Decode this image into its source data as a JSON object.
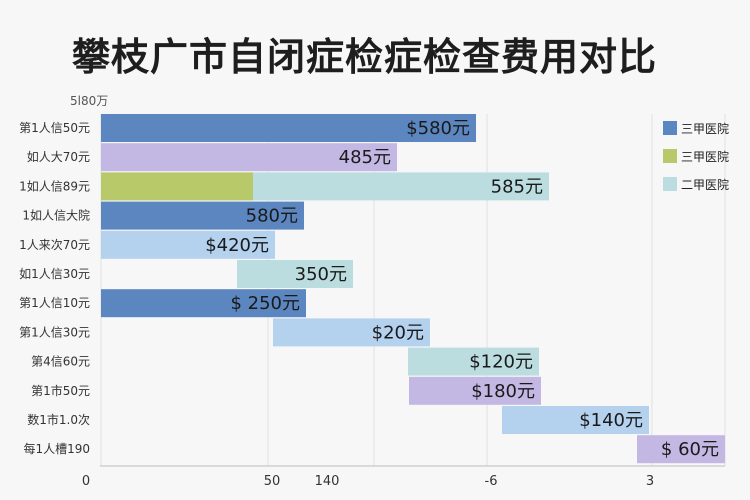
{
  "chart_data": {
    "type": "bar",
    "orientation": "horizontal",
    "title": "攀枝广市自闭症检症检查费用对比",
    "unit_label": "5l80万",
    "legend_position": "right",
    "legend": [
      {
        "name": "三甲医院",
        "color": "#5b86c0"
      },
      {
        "name": "三甲医院",
        "color": "#b8c96a"
      },
      {
        "name": "二甲医院",
        "color": "#bcdde0"
      }
    ],
    "x_ticks": [
      "0",
      "50",
      "140",
      "-6",
      "3"
    ],
    "rows": [
      {
        "category": "第1人信50元",
        "label": "$580元",
        "segments": [
          {
            "start": 0,
            "end": 375,
            "color": "#5b86c0"
          }
        ]
      },
      {
        "category": "如人大70元",
        "label": "485元",
        "segments": [
          {
            "start": 0,
            "end": 296,
            "color": "#c3b8e4"
          }
        ]
      },
      {
        "category": "1如人信89元",
        "label": "585元",
        "segments": [
          {
            "start": 0,
            "end": 152,
            "color": "#b8c96a"
          },
          {
            "start": 152,
            "end": 448,
            "color": "#bcdde0"
          }
        ]
      },
      {
        "category": "1如人信大院",
        "label": "580元",
        "segments": [
          {
            "start": 0,
            "end": 203,
            "color": "#5b86c0"
          }
        ]
      },
      {
        "category": "1人来次70元",
        "label": "$420元",
        "segments": [
          {
            "start": 0,
            "end": 174,
            "color": "#b4d1ee"
          }
        ]
      },
      {
        "category": "如1人信30元",
        "label": "350元",
        "segments": [
          {
            "start": 136,
            "end": 252,
            "color": "#bcdde0"
          }
        ]
      },
      {
        "category": "第1人信10元",
        "label": "$ 250元",
        "segments": [
          {
            "start": 0,
            "end": 205,
            "color": "#5b86c0"
          }
        ]
      },
      {
        "category": "第1人信30元",
        "label": "$20元",
        "segments": [
          {
            "start": 172,
            "end": 329,
            "color": "#b4d1ee"
          }
        ]
      },
      {
        "category": "第4信60元",
        "label": "$120元",
        "segments": [
          {
            "start": 307,
            "end": 438,
            "color": "#bcdde0"
          }
        ]
      },
      {
        "category": "第1市50元",
        "label": "$180元",
        "segments": [
          {
            "start": 308,
            "end": 440,
            "color": "#c3b8e4"
          }
        ]
      },
      {
        "category": "数1市1.0次",
        "label": "$140元",
        "segments": [
          {
            "start": 401,
            "end": 548,
            "color": "#b4d1ee"
          }
        ]
      },
      {
        "category": "每1人槽190",
        "label": "$ 60元",
        "segments": [
          {
            "start": 536,
            "end": 624,
            "color": "#c3b8e4"
          }
        ]
      }
    ]
  }
}
